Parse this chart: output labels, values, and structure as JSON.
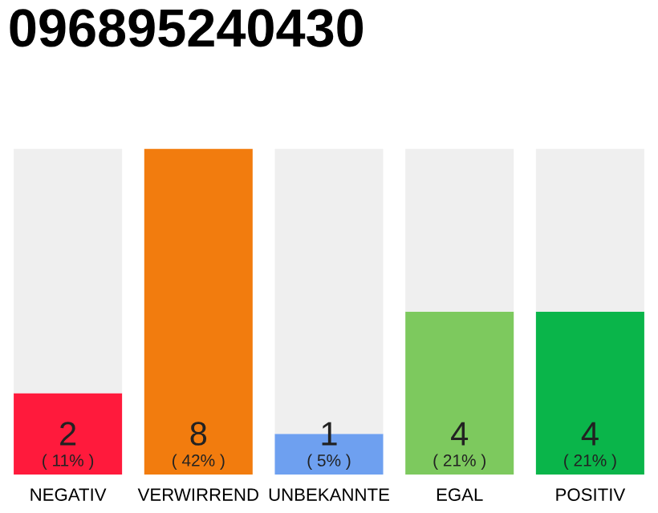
{
  "chart_data": {
    "type": "bar",
    "title": "096895240430",
    "categories": [
      "NEGATIV",
      "VERWIRREND",
      "UNBEKANNTE",
      "EGAL",
      "POSITIV"
    ],
    "stacked": true,
    "series": [
      {
        "colors": [
          "#ff1a3c",
          "#f27c0e",
          "#6ea0f0",
          "#7dc95e",
          "#0ab54a"
        ],
        "values": [
          2,
          8,
          1,
          4,
          4
        ],
        "value_labels": [
          "2\n( 11% )",
          "8\n( 42% )",
          "1\n( 5% )",
          "4\n( 21% )",
          "4\n( 21% )"
        ]
      },
      {
        "color": "#efefef",
        "values": [
          6,
          0,
          7,
          4,
          4
        ]
      }
    ],
    "grid": false,
    "legend": false,
    "tick_labels": "x"
  }
}
